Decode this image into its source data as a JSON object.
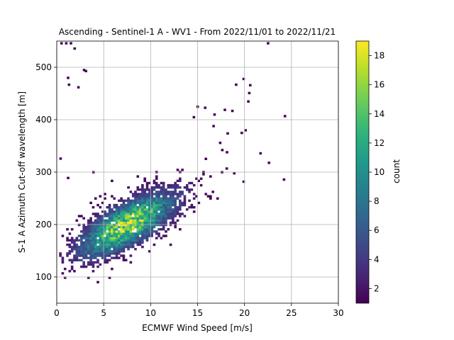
{
  "chart_data": {
    "type": "heatmap",
    "title": "Ascending - Sentinel-1 A - WV1 - From 2022/11/01 to 2022/11/21",
    "xlabel": "ECMWF Wind Speed [m/s]",
    "ylabel": "S-1 A Azimuth Cut-off wavelength [m]",
    "xlim": [
      0,
      30
    ],
    "ylim": [
      50,
      550
    ],
    "xticks": [
      0,
      5,
      10,
      15,
      20,
      25,
      30
    ],
    "yticks": [
      100,
      200,
      300,
      400,
      500
    ],
    "grid": true,
    "colorbar": {
      "label": "count",
      "colormap": "viridis",
      "range": [
        1,
        19
      ],
      "ticks": [
        2,
        4,
        6,
        8,
        10,
        12,
        14,
        16,
        18
      ]
    },
    "bin_size": {
      "x": 0.25,
      "y": 4.2
    },
    "density_model": {
      "center": [
        7.5,
        200
      ],
      "spread_along": 4.2,
      "spread_across": 1.7,
      "slope": 12,
      "peak_count": 19
    },
    "sparse_points": [
      [
        0.5,
        546
      ],
      [
        1.0,
        546
      ],
      [
        1.5,
        546
      ],
      [
        1.9,
        536
      ],
      [
        2.9,
        495
      ],
      [
        3.1,
        493
      ],
      [
        1.2,
        480
      ],
      [
        1.3,
        467
      ],
      [
        2.3,
        462
      ],
      [
        0.4,
        326
      ],
      [
        1.2,
        289
      ],
      [
        3.9,
        300
      ],
      [
        15.0,
        425
      ],
      [
        15.8,
        423
      ],
      [
        17.9,
        419
      ],
      [
        18.7,
        417
      ],
      [
        16.8,
        410
      ],
      [
        19.1,
        467
      ],
      [
        19.9,
        478
      ],
      [
        20.6,
        466
      ],
      [
        20.5,
        451
      ],
      [
        20.4,
        435
      ],
      [
        20.1,
        380
      ],
      [
        22.5,
        546
      ],
      [
        24.3,
        407
      ],
      [
        24.2,
        286
      ],
      [
        21.7,
        336
      ],
      [
        22.6,
        318
      ],
      [
        19.9,
        282
      ],
      [
        18.9,
        298
      ],
      [
        18.1,
        307
      ],
      [
        17.6,
        300
      ],
      [
        19.7,
        375
      ],
      [
        18.2,
        374
      ],
      [
        16.7,
        388
      ],
      [
        17.4,
        356
      ],
      [
        14.6,
        405
      ]
    ]
  }
}
